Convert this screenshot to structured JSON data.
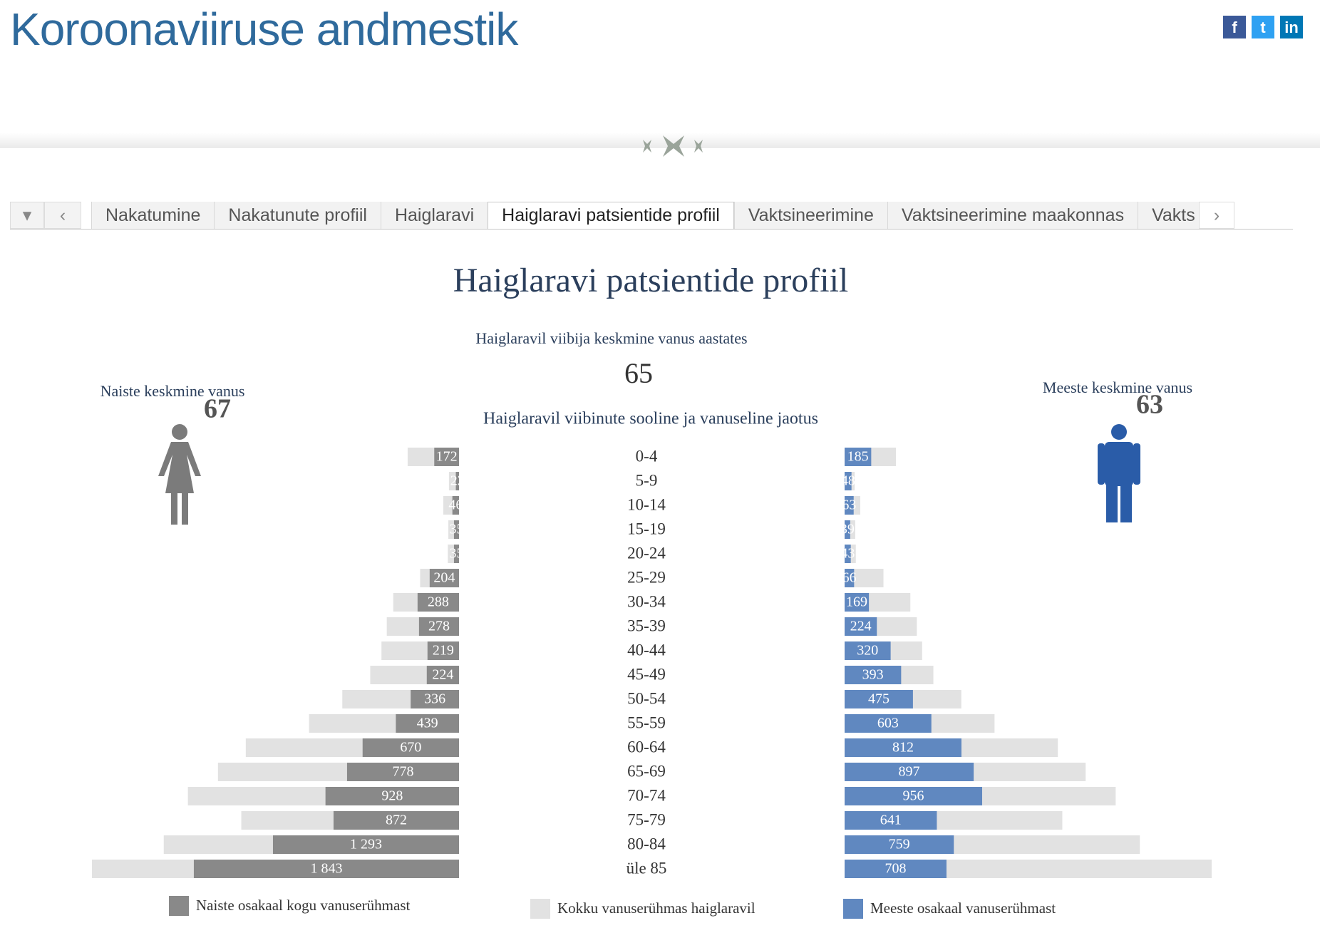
{
  "header": {
    "title": "Koroonaviiruse andmestik"
  },
  "tabs": [
    "Nakatumine",
    "Nakatunute profiil",
    "Haiglaravi",
    "Haiglaravi patsientide profiil",
    "Vaktsineerimine",
    "Vaktsineerimine maakonnas",
    "Vakts"
  ],
  "active_tab": 3,
  "chart_data": {
    "type": "pyramid",
    "title": "Haiglaravi patsientide profiil",
    "subtitle": "Haiglaravil viibija keskmine vanus aastates",
    "average_value": 65,
    "women": {
      "label": "Naiste keskmine vanus",
      "value": 67
    },
    "men": {
      "label": "Meeste keskmine vanus",
      "value": 63
    },
    "chart_title": "Haiglaravil viibinute sooline ja vanuseline jaotus",
    "categories": [
      "0-4",
      "5-9",
      "10-14",
      "15-19",
      "20-24",
      "25-29",
      "30-34",
      "35-39",
      "40-44",
      "45-49",
      "50-54",
      "55-59",
      "60-64",
      "65-69",
      "70-74",
      "75-79",
      "80-84",
      "üle 85"
    ],
    "series": [
      {
        "name": "Naiste osakaal kogu vanuserühmast",
        "color": "#898989",
        "values": [
          172,
          22,
          46,
          35,
          35,
          204,
          288,
          278,
          219,
          224,
          336,
          439,
          670,
          778,
          928,
          872,
          1293,
          1843
        ],
        "value_labels": [
          "172",
          "22",
          "46",
          "35",
          "35",
          "204",
          "288",
          "278",
          "219",
          "224",
          "336",
          "439",
          "670",
          "778",
          "928",
          "872",
          "1 293",
          "1 843"
        ]
      },
      {
        "name": "Kokku vanuserühmas haiglaravil",
        "color": "#e2e2e2",
        "values": [
          357,
          70,
          109,
          74,
          78,
          270,
          457,
          502,
          539,
          617,
          811,
          1042,
          1482,
          1675,
          1884,
          1513,
          2052,
          2551
        ]
      },
      {
        "name": "Meeste osakaal vanuserühmast",
        "color": "#6088c0",
        "values": [
          185,
          48,
          63,
          39,
          43,
          66,
          169,
          224,
          320,
          393,
          475,
          603,
          812,
          897,
          956,
          641,
          759,
          708
        ]
      }
    ]
  }
}
